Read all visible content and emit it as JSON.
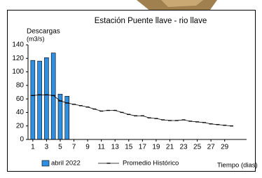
{
  "chart_data": {
    "type": "combo",
    "title": "Estación Puente llave - rio llave",
    "ylabel": [
      "Descargas",
      "(m3/s)"
    ],
    "xlabel": "Tiempo (dias)",
    "x": [
      1,
      2,
      3,
      4,
      5,
      6,
      7,
      8,
      9,
      10,
      11,
      12,
      13,
      14,
      15,
      16,
      17,
      18,
      19,
      20,
      21,
      22,
      23,
      24,
      25,
      26,
      27,
      28,
      29,
      30
    ],
    "series": [
      {
        "name": "abril 2022",
        "type": "bar",
        "color": "#2f8fe0",
        "values": [
          117,
          116,
          121,
          128,
          67,
          64,
          null,
          null,
          null,
          null,
          null,
          null,
          null,
          null,
          null,
          null,
          null,
          null,
          null,
          null,
          null,
          null,
          null,
          null,
          null,
          null,
          null,
          null,
          null,
          null
        ]
      },
      {
        "name": "Promedio Histórico",
        "type": "line",
        "color": "#000000",
        "values": [
          65,
          66,
          66,
          65,
          57,
          54,
          52,
          50,
          48,
          45,
          42,
          43,
          43,
          40,
          37,
          35,
          35,
          32,
          31,
          29,
          28,
          28,
          29,
          27,
          26,
          25,
          23,
          22,
          21,
          20
        ]
      }
    ],
    "xlim": [
      0.3,
      32.2
    ],
    "xticks": [
      1,
      3,
      5,
      7,
      9,
      11,
      13,
      15,
      17,
      19,
      21,
      23,
      25,
      27,
      29
    ],
    "ylim": [
      0,
      140
    ],
    "yticks": [
      0,
      20,
      40,
      60,
      80,
      100,
      120,
      140
    ],
    "grid": false,
    "legend": "bottom"
  }
}
